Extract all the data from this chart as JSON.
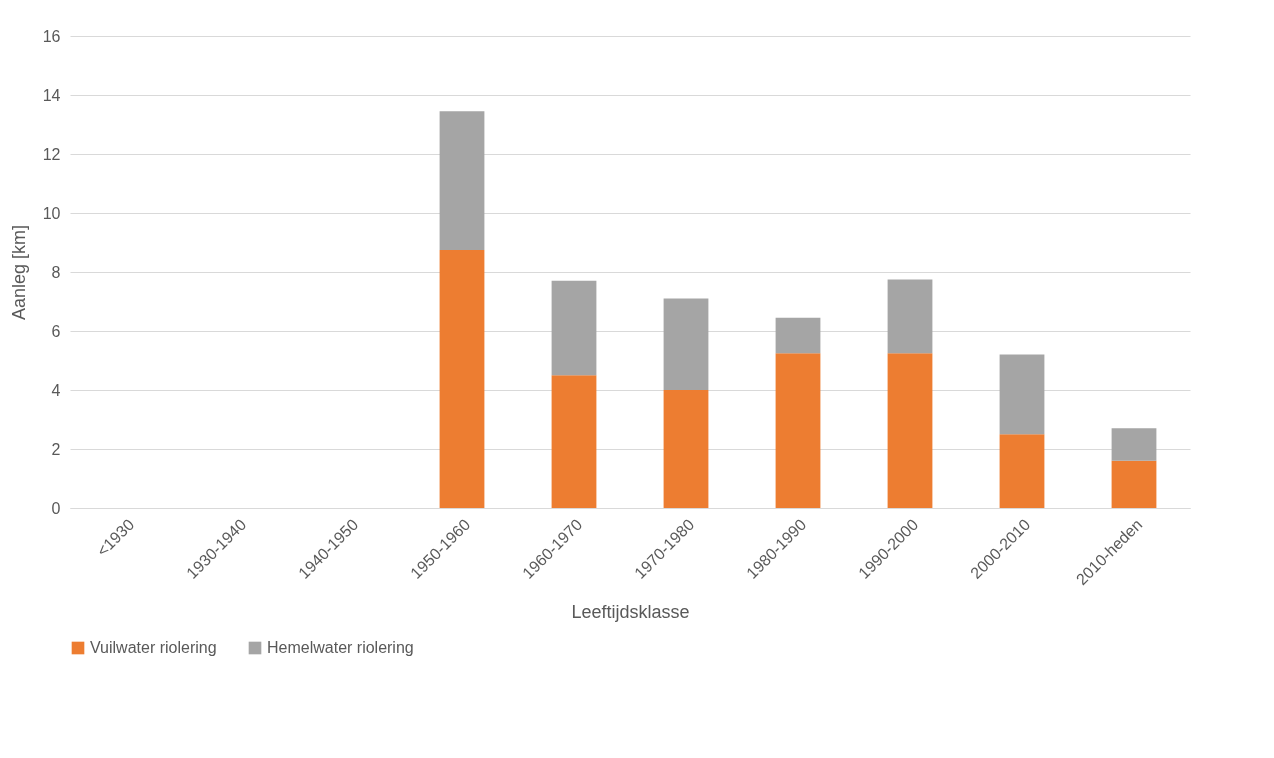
{
  "chart_data": {
    "type": "bar",
    "stacked": true,
    "xlabel": "Leeftijdsklasse",
    "ylabel": "Aanleg [km]",
    "categories": [
      "<1930",
      "1930-1940",
      "1940-1950",
      "1950-1960",
      "1960-1970",
      "1970-1980",
      "1980-1990",
      "1990-2000",
      "2000-2010",
      "2010-heden"
    ],
    "series": [
      {
        "name": "Vuilwater riolering",
        "color": "#ed7d31",
        "values": [
          0,
          0,
          0,
          8.75,
          4.5,
          4.0,
          5.25,
          5.25,
          2.5,
          1.6
        ]
      },
      {
        "name": "Hemelwater riolering",
        "color": "#a5a5a5",
        "values": [
          0,
          0,
          0,
          4.7,
          3.2,
          3.1,
          1.2,
          2.5,
          2.7,
          1.1
        ]
      }
    ],
    "ylim": [
      0,
      16
    ],
    "yticks": [
      0,
      2,
      4,
      6,
      8,
      10,
      12,
      14,
      16
    ],
    "grid": "y",
    "legend": "bottom"
  }
}
